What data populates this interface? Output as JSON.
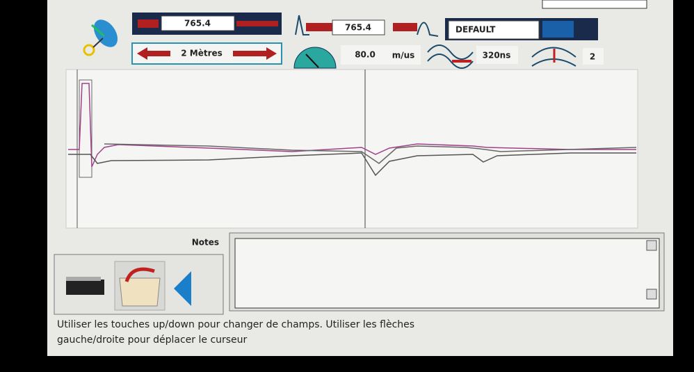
{
  "toolbar": {
    "distance_a": "765.4",
    "distance_b": "765.4",
    "profile": "DEFAULT",
    "range": "2 Mètres",
    "velocity": "80.0",
    "velocity_unit": "m/us",
    "pulse_width": "320ns",
    "gain": "2"
  },
  "notes": {
    "label": "Notes"
  },
  "status": {
    "lines": [
      "Utiliser les touches up/down pour changer de champs. Utiliser les flèches",
      "gauche/droite pour déplacer le curseur"
    ]
  }
}
